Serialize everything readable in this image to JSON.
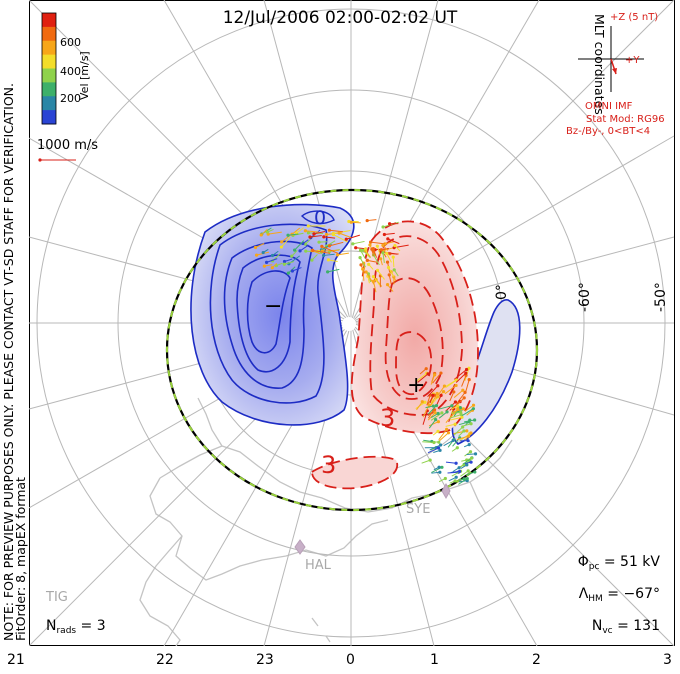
{
  "title": "12/Jul/2006 02:00-02:02 UT",
  "coord_label": "MLT coordinates",
  "color_scale": {
    "label": "Vel [m/s]",
    "ticks": [
      "600",
      "400",
      "200"
    ],
    "colors": [
      "#e02010",
      "#f06a10",
      "#f7a619",
      "#f3dd2a",
      "#8fd24b",
      "#3db06a",
      "#2a86a6",
      "#2a44d4"
    ]
  },
  "vector_scale": {
    "label": "1000 m/s"
  },
  "preview_note": "NOTE: FOR PREVIEW PURPOSES ONLY. PLEASE CONTACT VT-SD STAFF FOR VERIFICATION.",
  "fit_note": "FitOrder: 8, mapEX format",
  "imf": {
    "z_label": "+Z (5 nT)",
    "y_label": "+Y",
    "source": "OMNI IMF",
    "model_line1": "Stat Mod: RG96",
    "model_line2": "Bz-/By-, 0<BT<4"
  },
  "latitude_labels": [
    "-60°",
    "-50°"
  ],
  "contour_zero_label": "0",
  "contour_labels": [
    "0",
    "3",
    "3"
  ],
  "potential_markers": [
    "−",
    "+"
  ],
  "sites": [
    "SYE",
    "HAL",
    "TIG"
  ],
  "mlt_labels": [
    "21",
    "22",
    "23",
    "0",
    "1",
    "2",
    "3"
  ],
  "stats": {
    "phi_sym": "Φ",
    "phi_sub": "pc",
    "phi_value": " = 51 kV",
    "lambda_sym": "Λ",
    "lambda_sub": "HM",
    "lambda_value": " = −67°",
    "nvc_sym": "N",
    "nvc_sub": "vc",
    "nvc_value": " = 131",
    "nrads_sym": "N",
    "nrads_sub": "rads",
    "nrads_value": " = 3"
  },
  "colors": {
    "negative_cell_line": "#1d2cc4",
    "positive_cell_line": "#d8201a",
    "hmb_green": "#9ad43c",
    "grid": "#b8b8b8",
    "coast": "#c4c4c4"
  }
}
